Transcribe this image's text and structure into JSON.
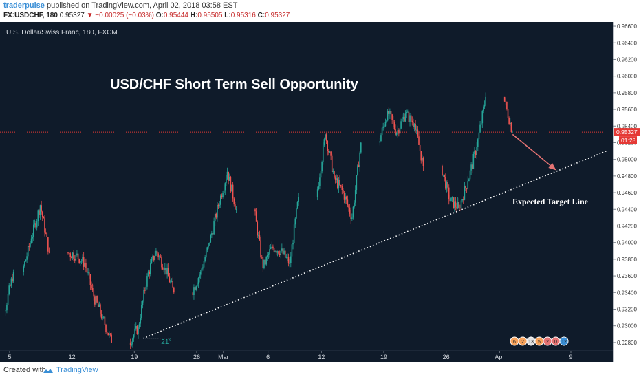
{
  "header": {
    "author": "traderpulse",
    "published_text": "published on TradingView.com, April 02, 2018 03:58 EST",
    "symbol": "FX:USDCHF, 180",
    "last": "0.95327",
    "change": "▼ −0.00025 (−0.03%)",
    "o_label": "O:",
    "o_value": "0.95444",
    "h_label": "H:",
    "h_value": "0.95505",
    "l_label": "L:",
    "l_value": "0.95316",
    "c_label": "C:",
    "c_value": "0.95327"
  },
  "chart": {
    "instrument_label": "U.S. Dollar/Swiss Franc, 180, FXCM",
    "headline": "USD/CHF Short Term Sell Opportunity",
    "target_label": "Expected Target Line",
    "angle_label": "21°",
    "price_tag": "0.95327",
    "countdown_tag": "01:28",
    "event_badges": [
      "6",
      "2",
      "13",
      "5",
      "2",
      "0",
      "12"
    ]
  },
  "chart_data": {
    "type": "candlestick",
    "title": "USD/CHF Short Term Sell Opportunity",
    "xlabel": "",
    "ylabel": "",
    "ylim": [
      0.927,
      0.9665
    ],
    "y_ticks": [
      "0.96600",
      "0.96400",
      "0.96200",
      "0.96000",
      "0.95800",
      "0.95600",
      "0.95400",
      "0.95200",
      "0.95000",
      "0.94800",
      "0.94600",
      "0.94400",
      "0.94200",
      "0.94000",
      "0.93800",
      "0.93600",
      "0.93400",
      "0.93200",
      "0.93000",
      "0.92800"
    ],
    "y_tick_values": [
      0.966,
      0.964,
      0.962,
      0.96,
      0.958,
      0.956,
      0.954,
      0.952,
      0.95,
      0.948,
      0.946,
      0.944,
      0.942,
      0.94,
      0.938,
      0.936,
      0.934,
      0.932,
      0.93,
      0.928
    ],
    "x_ticks": [
      "5",
      "12",
      "19",
      "26",
      "Mar",
      "6",
      "12",
      "19",
      "26",
      "Apr",
      "9"
    ],
    "x_tick_values": [
      "2018-02-05",
      "2018-02-12",
      "2018-02-19",
      "2018-02-26",
      "2018-03-01",
      "2018-03-06",
      "2018-03-12",
      "2018-03-19",
      "2018-03-26",
      "2018-04-01",
      "2018-04-09"
    ],
    "last_price": 0.95327,
    "series": {
      "dates": [
        "2018-02-02",
        "2018-02-05",
        "2018-02-07",
        "2018-02-08",
        "2018-02-09",
        "2018-02-12",
        "2018-02-13",
        "2018-02-14",
        "2018-02-15",
        "2018-02-16",
        "2018-02-19",
        "2018-02-20",
        "2018-02-21",
        "2018-02-22",
        "2018-02-23",
        "2018-02-26",
        "2018-02-27",
        "2018-02-28",
        "2018-03-01",
        "2018-03-02",
        "2018-03-05",
        "2018-03-06",
        "2018-03-07",
        "2018-03-08",
        "2018-03-09",
        "2018-03-12",
        "2018-03-13",
        "2018-03-14",
        "2018-03-15",
        "2018-03-16",
        "2018-03-19",
        "2018-03-20",
        "2018-03-21",
        "2018-03-22",
        "2018-03-23",
        "2018-03-26",
        "2018-03-27",
        "2018-03-28",
        "2018-03-29",
        "2018-03-30",
        "2018-04-02"
      ],
      "close": [
        0.9318,
        0.9365,
        0.9405,
        0.9445,
        0.9388,
        0.9385,
        0.9375,
        0.9335,
        0.931,
        0.928,
        0.9298,
        0.936,
        0.939,
        0.937,
        0.934,
        0.9365,
        0.94,
        0.9445,
        0.9485,
        0.944,
        0.937,
        0.9395,
        0.939,
        0.9375,
        0.9455,
        0.953,
        0.9478,
        0.946,
        0.943,
        0.952,
        0.9558,
        0.9532,
        0.9555,
        0.9542,
        0.9492,
        0.945,
        0.9442,
        0.9474,
        0.9515,
        0.9575,
        0.9533
      ]
    },
    "annotations": [
      {
        "type": "text",
        "label": "USD/CHF Short Term Sell Opportunity"
      },
      {
        "type": "trendline",
        "label": "Expected Target Line",
        "from": [
          "2018-02-20",
          0.9285
        ],
        "to": [
          "2018-04-13",
          0.951
        ]
      },
      {
        "type": "arrow",
        "from": [
          "2018-04-02",
          0.953
        ],
        "to": [
          "2018-04-06",
          0.9488
        ]
      },
      {
        "type": "angle",
        "label": "21°"
      }
    ],
    "grid": false,
    "colors": {
      "background": "#0f1b2a",
      "up": "#26a69a",
      "down": "#ef5350",
      "price_line": "#e53935",
      "arrow": "#e57373",
      "trendline": "#ffffff"
    }
  },
  "footer": {
    "created_with": "Created with",
    "brand": "TradingView"
  }
}
